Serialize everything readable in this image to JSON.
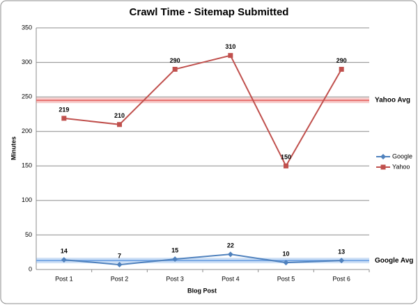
{
  "chart_data": {
    "type": "line",
    "title": "Crawl Time - Sitemap Submitted",
    "x_label": "Blog Post",
    "y_label": "Minutes",
    "categories": [
      "Post 1",
      "Post 2",
      "Post 3",
      "Post 4",
      "Post 5",
      "Post 6"
    ],
    "series": [
      {
        "name": "Google",
        "color": "#4f81bd",
        "marker": "diamond",
        "values": [
          14,
          7,
          15,
          22,
          10,
          13
        ]
      },
      {
        "name": "Yahoo",
        "color": "#c0504d",
        "marker": "square",
        "values": [
          219,
          210,
          290,
          310,
          150,
          290
        ]
      }
    ],
    "reference_lines": [
      {
        "label": "Yahoo Avg",
        "value": 245,
        "color": "#e8706e"
      },
      {
        "label": "Google Avg",
        "value": 13,
        "color": "#74a6e4"
      }
    ],
    "ylim": [
      0,
      350
    ],
    "yticks": [
      0,
      50,
      100,
      150,
      200,
      250,
      300,
      350
    ],
    "grid": true,
    "legend": "right"
  }
}
